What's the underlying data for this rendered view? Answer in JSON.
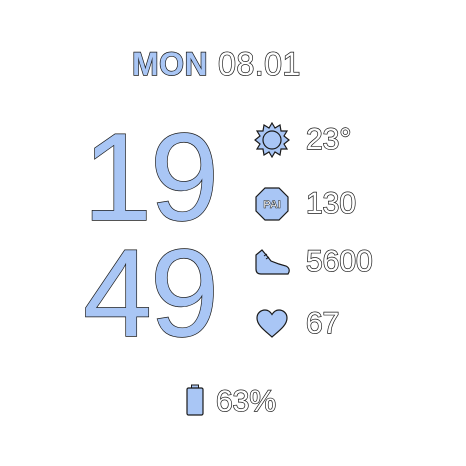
{
  "date": {
    "day": "MON",
    "date": "08.01"
  },
  "time": {
    "hour": "19",
    "minute": "49"
  },
  "stats": {
    "weather": {
      "icon": "sun-icon",
      "value": "23°"
    },
    "pai": {
      "icon": "pai-badge-icon",
      "label": "PAI",
      "value": "130"
    },
    "steps": {
      "icon": "shoe-icon",
      "value": "5600"
    },
    "heart": {
      "icon": "heart-icon",
      "value": "67"
    }
  },
  "battery": {
    "icon": "battery-icon",
    "value": "63%",
    "level": 0.63
  },
  "colors": {
    "accent": "#a9c6f5",
    "outline": "#1a1a1a",
    "background": "#ffffff"
  }
}
